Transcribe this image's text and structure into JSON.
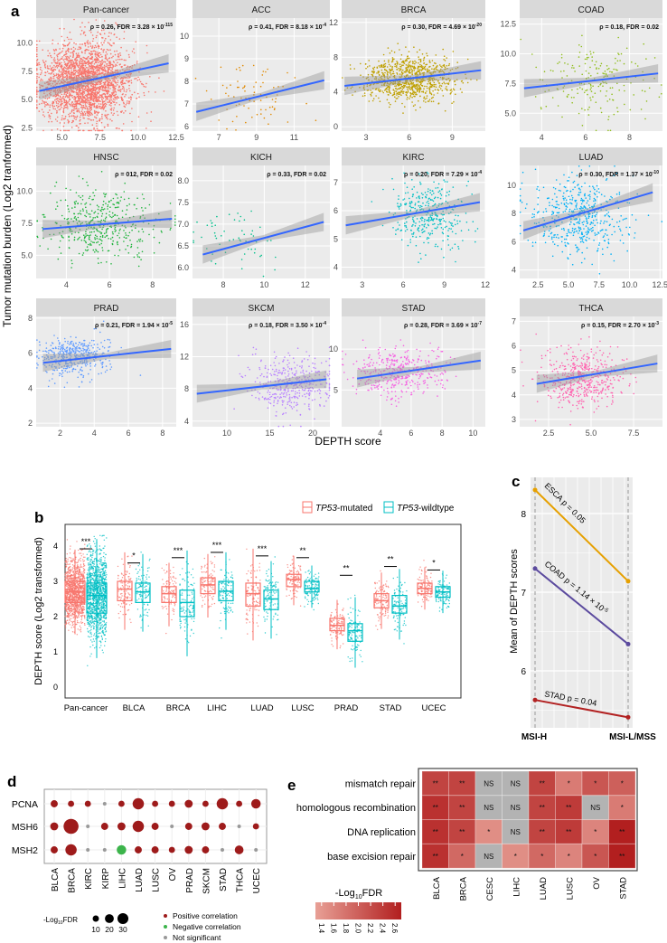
{
  "panel_labels": {
    "a": "a",
    "b": "b",
    "c": "c",
    "d": "d",
    "e": "e"
  },
  "chart_data": [
    {
      "type": "scatter",
      "panel": "a",
      "ylabel": "Tumor mutation burden (Log2 tranformed)",
      "xlabel": "DEPTH score",
      "fit_line_color": "#3366ff",
      "facets": [
        {
          "title": "Pan-cancer",
          "color": "#f8766d",
          "ann": "ρ = 0.26, FDR = 3.28 × 10",
          "ann_exp": "-115",
          "xlim": [
            3.3,
            12.5
          ],
          "ylim": [
            2.2,
            12.2
          ],
          "xticks": [
            "5.0",
            "7.5",
            "10.0",
            "12.5"
          ],
          "yticks": [
            "2.5",
            "5.0",
            "7.5",
            "10.0"
          ],
          "fit": [
            [
              3.5,
              5.75
            ],
            [
              12,
              8.2
            ]
          ]
        },
        {
          "title": "ACC",
          "color": "#e18a00",
          "ann": "ρ = 0.41, FDR = 8.18 × 10",
          "ann_exp": "-4",
          "xlim": [
            5.6,
            12.9
          ],
          "ylim": [
            5.8,
            10.8
          ],
          "xticks": [
            "7",
            "9",
            "11"
          ],
          "yticks": [
            "6",
            "7",
            "8",
            "9",
            "10"
          ],
          "fit": [
            [
              5.8,
              6.65
            ],
            [
              12.6,
              8.05
            ]
          ]
        },
        {
          "title": "BRCA",
          "color": "#bfa000",
          "ann": "ρ = 0.30, FDR = 4.69 × 10",
          "ann_exp": "-20",
          "xlim": [
            1.3,
            11.3
          ],
          "ylim": [
            -0.5,
            12.5
          ],
          "xticks": [
            "3",
            "6",
            "9"
          ],
          "yticks": [
            "0",
            "4",
            "8",
            "12"
          ],
          "fit": [
            [
              1.5,
              4.7
            ],
            [
              11,
              6.5
            ]
          ]
        },
        {
          "title": "COAD",
          "color": "#8fbd1a",
          "ann": "ρ = 0.18, FDR = 0.02",
          "ann_exp": "",
          "xlim": [
            3,
            9.5
          ],
          "ylim": [
            3.5,
            13
          ],
          "xticks": [
            "4",
            "6",
            "8"
          ],
          "yticks": [
            "5.0",
            "7.5",
            "10.0",
            "12.5"
          ],
          "fit": [
            [
              3.2,
              7.1
            ],
            [
              9.3,
              8.35
            ]
          ]
        },
        {
          "title": "HNSC",
          "color": "#1fb33c",
          "ann": "ρ = 012, FDR = 0.02",
          "ann_exp": "",
          "xlim": [
            2.6,
            9.1
          ],
          "ylim": [
            3.2,
            12
          ],
          "xticks": [
            "4",
            "6",
            "8"
          ],
          "yticks": [
            "5.0",
            "7.5",
            "10.0"
          ],
          "fit": [
            [
              2.9,
              7.05
            ],
            [
              8.9,
              7.85
            ]
          ]
        },
        {
          "title": "KICH",
          "color": "#00c08b",
          "ann": "ρ = 0.33, FDR = 0.02",
          "ann_exp": "",
          "xlim": [
            6.5,
            13.2
          ],
          "ylim": [
            5.75,
            8.35
          ],
          "xticks": [
            "8",
            "10",
            "12"
          ],
          "yticks": [
            "6.0",
            "6.5",
            "7.0",
            "7.5",
            "8.0"
          ],
          "fit": [
            [
              7,
              6.3
            ],
            [
              12.9,
              7.05
            ]
          ]
        },
        {
          "title": "KIRC",
          "color": "#00bfc4",
          "ann": "ρ = 0.20, FDR = 7.29 × 10",
          "ann_exp": "-4",
          "xlim": [
            1.5,
            12
          ],
          "ylim": [
            3.6,
            7.6
          ],
          "xticks": [
            "3",
            "6",
            "9",
            "12"
          ],
          "yticks": [
            "4",
            "5",
            "6",
            "7"
          ],
          "fit": [
            [
              1.8,
              5.48
            ],
            [
              11.6,
              6.3
            ]
          ]
        },
        {
          "title": "LUAD",
          "color": "#00b0f6",
          "ann": "ρ = 0.30, FDR = 1.37 × 10",
          "ann_exp": "-10",
          "xlim": [
            1,
            12.7
          ],
          "ylim": [
            3.4,
            11.4
          ],
          "xticks": [
            "2.5",
            "5.0",
            "7.5",
            "10.0",
            "12.5"
          ],
          "yticks": [
            "4",
            "6",
            "8",
            "10"
          ],
          "fit": [
            [
              1.3,
              6.8
            ],
            [
              11.9,
              9.5
            ]
          ]
        },
        {
          "title": "PRAD",
          "color": "#619cff",
          "ann": "ρ = 0.21, FDR = 1.94 × 10",
          "ann_exp": "-5",
          "xlim": [
            0.6,
            8.8
          ],
          "ylim": [
            1.8,
            8.1
          ],
          "xticks": [
            "2",
            "4",
            "6",
            "8"
          ],
          "yticks": [
            "2",
            "4",
            "6",
            "8"
          ],
          "fit": [
            [
              1,
              5.45
            ],
            [
              8.5,
              6.25
            ]
          ]
        },
        {
          "title": "SKCM",
          "color": "#b983ff",
          "ann": "ρ = 0.18, FDR = 3.50 × 10",
          "ann_exp": "-4",
          "xlim": [
            6,
            22
          ],
          "ylim": [
            3.3,
            17
          ],
          "xticks": [
            "10",
            "15",
            "20"
          ],
          "yticks": [
            "4",
            "8",
            "12",
            "16"
          ],
          "fit": [
            [
              6.5,
              7.4
            ],
            [
              21.6,
              9.2
            ]
          ]
        },
        {
          "title": "STAD",
          "color": "#f564e3",
          "ann": "ρ = 0.28, FDR = 3.69 × 10",
          "ann_exp": "-7",
          "xlim": [
            1.5,
            10.8
          ],
          "ylim": [
            0.5,
            14
          ],
          "xticks": [
            "4",
            "6",
            "8",
            "10"
          ],
          "yticks": [
            "5",
            "10"
          ],
          "fit": [
            [
              2.5,
              6.4
            ],
            [
              10.5,
              8.6
            ]
          ]
        },
        {
          "title": "THCA",
          "color": "#ff64b0",
          "ann": "ρ = 0.15, FDR = 2.70 × 10",
          "ann_exp": "-3",
          "xlim": [
            0.8,
            9.2
          ],
          "ylim": [
            2.7,
            7.2
          ],
          "xticks": [
            "2.5",
            "5.0",
            "7.5"
          ],
          "yticks": [
            "3",
            "4",
            "5",
            "6",
            "7"
          ],
          "fit": [
            [
              1.8,
              4.45
            ],
            [
              8.9,
              5.28
            ]
          ]
        }
      ]
    },
    {
      "type": "box",
      "panel": "b",
      "ylabel": "DEPTH score (Log2 transformed)",
      "ylim": [
        0,
        4.3
      ],
      "yticks": [
        "0",
        "1",
        "2",
        "3",
        "4"
      ],
      "legend": {
        "placement": "top-right",
        "items": [
          {
            "gene": "TP53",
            "suffix": "-mutated",
            "color": "#f8766d"
          },
          {
            "gene": "TP53",
            "suffix": "-wildtype",
            "color": "#00bfc4"
          }
        ]
      },
      "categories": [
        "Pan-cancer",
        "BLCA",
        "BRCA",
        "LIHC",
        "LUAD",
        "LUSC",
        "PRAD",
        "STAD",
        "UCEC"
      ],
      "significance": [
        "***",
        "*",
        "***",
        "***",
        "***",
        "**",
        "**",
        "**",
        "*"
      ],
      "series": [
        {
          "name": "TP53-mutated",
          "median": [
            2.7,
            2.78,
            2.65,
            2.9,
            2.65,
            3.05,
            1.75,
            2.45,
            2.8
          ],
          "q1": [
            2.4,
            2.45,
            2.4,
            2.65,
            2.3,
            2.85,
            1.6,
            2.25,
            2.65
          ],
          "q3": [
            3.0,
            3.0,
            2.85,
            3.1,
            2.95,
            3.2,
            1.95,
            2.65,
            2.95
          ]
        },
        {
          "name": "TP53-wildtype",
          "median": [
            2.6,
            2.7,
            2.4,
            2.72,
            2.5,
            2.8,
            1.6,
            2.3,
            2.7
          ],
          "q1": [
            2.1,
            2.4,
            2.0,
            2.45,
            2.2,
            2.7,
            1.3,
            2.1,
            2.55
          ],
          "q3": [
            2.95,
            2.95,
            2.75,
            3.0,
            2.75,
            3.0,
            1.8,
            2.6,
            2.85
          ]
        }
      ]
    },
    {
      "type": "line",
      "panel": "c",
      "ylabel": "Mean of DEPTH scores",
      "categories": [
        "MSI-H",
        "MSI-L/MSS"
      ],
      "yticks": [
        "6",
        "7",
        "8"
      ],
      "ylim": [
        5.28,
        8.6
      ],
      "series": [
        {
          "name": "ESCA",
          "label": "ESCA p = 0.05",
          "color": "#e6a000",
          "values": [
            8.3,
            7.14
          ]
        },
        {
          "name": "COAD",
          "label": "COAD p = 1.14 × 10",
          "label_exp": "-5",
          "color": "#5b4a9e",
          "values": [
            7.3,
            6.34
          ]
        },
        {
          "name": "STAD",
          "label": "STAD p = 0.04",
          "color": "#b22222",
          "values": [
            5.63,
            5.41
          ]
        }
      ]
    },
    {
      "type": "dot",
      "panel": "d",
      "rows": [
        "PCNA",
        "MSH6",
        "MSH2"
      ],
      "columns": [
        "BLCA",
        "BRCA",
        "KIRC",
        "KIRP",
        "LIHC",
        "LUAD",
        "LUSC",
        "OV",
        "PRAD",
        "SKCM",
        "STAD",
        "THCA",
        "UCEC"
      ],
      "direction": [
        [
          "pos",
          "pos",
          "pos",
          "ns",
          "pos",
          "pos",
          "pos",
          "pos",
          "pos",
          "pos",
          "pos",
          "pos",
          "pos"
        ],
        [
          "pos",
          "pos",
          "ns",
          "pos",
          "pos",
          "pos",
          "pos",
          "ns",
          "pos",
          "pos",
          "pos",
          "ns",
          "pos"
        ],
        [
          "pos",
          "pos",
          "ns",
          "ns",
          "neg",
          "pos",
          "pos",
          "pos",
          "pos",
          "pos",
          "ns",
          "pos",
          "ns"
        ]
      ],
      "neglog10fdr": [
        [
          8,
          6,
          6,
          2,
          6,
          20,
          6,
          6,
          10,
          6,
          20,
          6,
          14
        ],
        [
          10,
          35,
          2,
          8,
          10,
          20,
          8,
          2,
          8,
          10,
          8,
          2,
          6
        ],
        [
          8,
          20,
          2,
          2,
          14,
          8,
          8,
          6,
          10,
          8,
          2,
          12,
          2
        ]
      ],
      "size_legend": {
        "title": "-Log",
        "title_sub": "10",
        "title_end": "FDR",
        "values": [
          "10",
          "20",
          "30"
        ]
      },
      "color_legend": [
        {
          "key": "pos",
          "label": "Positive correlation",
          "color": "#9e1b1b"
        },
        {
          "key": "neg",
          "label": "Negative correlation",
          "color": "#3cb44b"
        },
        {
          "key": "ns",
          "label": "Not significant",
          "color": "#999999"
        }
      ]
    },
    {
      "type": "heatmap",
      "panel": "e",
      "rows": [
        "mismatch repair",
        "homologous recombination",
        "DNA replication",
        "base excision repair"
      ],
      "columns": [
        "BLCA",
        "BRCA",
        "CESC",
        "LIHC",
        "LUAD",
        "LUSC",
        "OV",
        "STAD"
      ],
      "values": [
        [
          2.3,
          2.3,
          null,
          null,
          2.3,
          1.7,
          2.1,
          2.0
        ],
        [
          2.5,
          2.3,
          null,
          null,
          2.3,
          2.4,
          null,
          1.7
        ],
        [
          2.5,
          2.3,
          1.5,
          null,
          2.3,
          2.4,
          1.6,
          2.7
        ],
        [
          2.5,
          1.9,
          null,
          1.5,
          1.9,
          1.6,
          2.1,
          2.7
        ]
      ],
      "labels": [
        [
          "**",
          "**",
          "NS",
          "NS",
          "**",
          "*",
          "*",
          "*"
        ],
        [
          "**",
          "**",
          "NS",
          "NS",
          "**",
          "**",
          "NS",
          "*"
        ],
        [
          "**",
          "**",
          "*",
          "NS",
          "**",
          "**",
          "*",
          "**"
        ],
        [
          "**",
          "*",
          "NS",
          "*",
          "*",
          "*",
          "*",
          "**"
        ]
      ],
      "ns_color": "#b3b3b3",
      "colorbar": {
        "title": "-Log",
        "title_sub": "10",
        "title_end": "FDR",
        "range": [
          1.3,
          2.7
        ],
        "low_color": "#e8a096",
        "high_color": "#b21f1f",
        "ticks": [
          "1.4",
          "1.6",
          "1.8",
          "2.0",
          "2.2",
          "2.4",
          "2.6"
        ]
      }
    }
  ]
}
